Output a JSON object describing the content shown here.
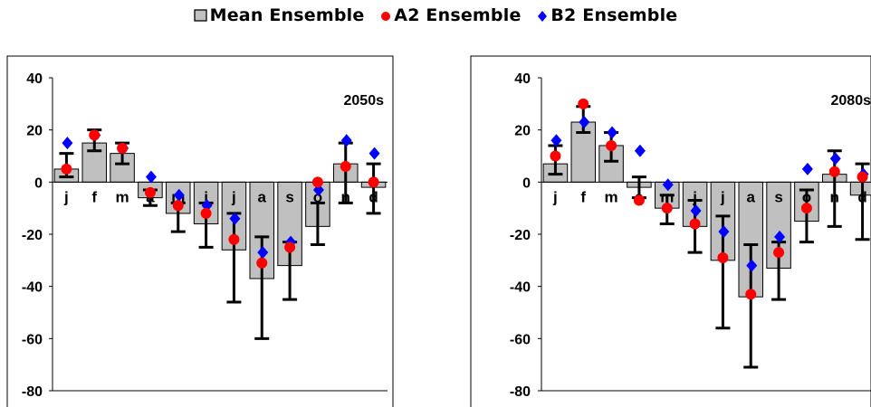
{
  "legend": [
    {
      "label": "Mean Ensemble",
      "marker": "square",
      "color": "#c0c0c0"
    },
    {
      "label": "A2 Ensemble",
      "marker": "circle",
      "color": "#ff0000"
    },
    {
      "label": "B2 Ensemble",
      "marker": "diamond",
      "color": "#0000ff"
    }
  ],
  "chart_data": [
    {
      "type": "bar",
      "annotation": "2050s",
      "categories": [
        "j",
        "f",
        "m",
        "a",
        "m",
        "j",
        "j",
        "a",
        "s",
        "o",
        "n",
        "d"
      ],
      "ylim": [
        -80,
        40
      ],
      "yticks": [
        40,
        20,
        0,
        -20,
        -40,
        -60,
        -80
      ],
      "grid": false,
      "series": [
        {
          "name": "Mean Ensemble",
          "kind": "bar",
          "color": "#c0c0c0",
          "values": [
            5,
            15,
            11,
            -6,
            -12,
            -16,
            -26,
            -37,
            -32,
            -17,
            7,
            -2
          ],
          "error_low": [
            2,
            12,
            7,
            -9,
            -19,
            -25,
            -46,
            -60,
            -45,
            -24,
            -8,
            -12
          ],
          "error_high": [
            11,
            20,
            15,
            -3,
            -8,
            -8,
            -12,
            -21,
            -23,
            -8,
            15,
            7
          ]
        },
        {
          "name": "A2 Ensemble",
          "kind": "marker",
          "color": "#ff0000",
          "values": [
            5,
            18,
            13,
            -4,
            -9,
            -12,
            -22,
            -31,
            -25,
            0,
            6,
            0
          ]
        },
        {
          "name": "B2 Ensemble",
          "kind": "marker",
          "color": "#0000ff",
          "values": [
            15,
            18,
            13,
            2,
            -5,
            -9,
            -14,
            -27,
            -23,
            -3,
            16,
            11
          ]
        }
      ]
    },
    {
      "type": "bar",
      "annotation": "2080s",
      "categories": [
        "j",
        "f",
        "m",
        "a",
        "m",
        "j",
        "j",
        "a",
        "s",
        "o",
        "n",
        "d"
      ],
      "ylim": [
        -80,
        40
      ],
      "yticks": [
        40,
        20,
        0,
        -20,
        -40,
        -60,
        -80
      ],
      "grid": false,
      "series": [
        {
          "name": "Mean Ensemble",
          "kind": "bar",
          "color": "#c0c0c0",
          "values": [
            7,
            23,
            14,
            -2,
            -10,
            -17,
            -30,
            -44,
            -33,
            -15,
            3,
            -5
          ],
          "error_low": [
            3,
            19,
            8,
            -6,
            -16,
            -27,
            -56,
            -71,
            -45,
            -23,
            -17,
            -22
          ],
          "error_high": [
            14,
            29,
            19,
            2,
            -5,
            -7,
            -13,
            -24,
            -23,
            -3,
            12,
            7
          ]
        },
        {
          "name": "A2 Ensemble",
          "kind": "marker",
          "color": "#ff0000",
          "values": [
            10,
            30,
            14,
            -7,
            -10,
            -16,
            -29,
            -43,
            -27,
            -10,
            4,
            2
          ]
        },
        {
          "name": "B2 Ensemble",
          "kind": "marker",
          "color": "#0000ff",
          "values": [
            16,
            23,
            19,
            12,
            -1,
            -11,
            -19,
            -32,
            -21,
            5,
            9,
            3
          ]
        }
      ]
    }
  ]
}
